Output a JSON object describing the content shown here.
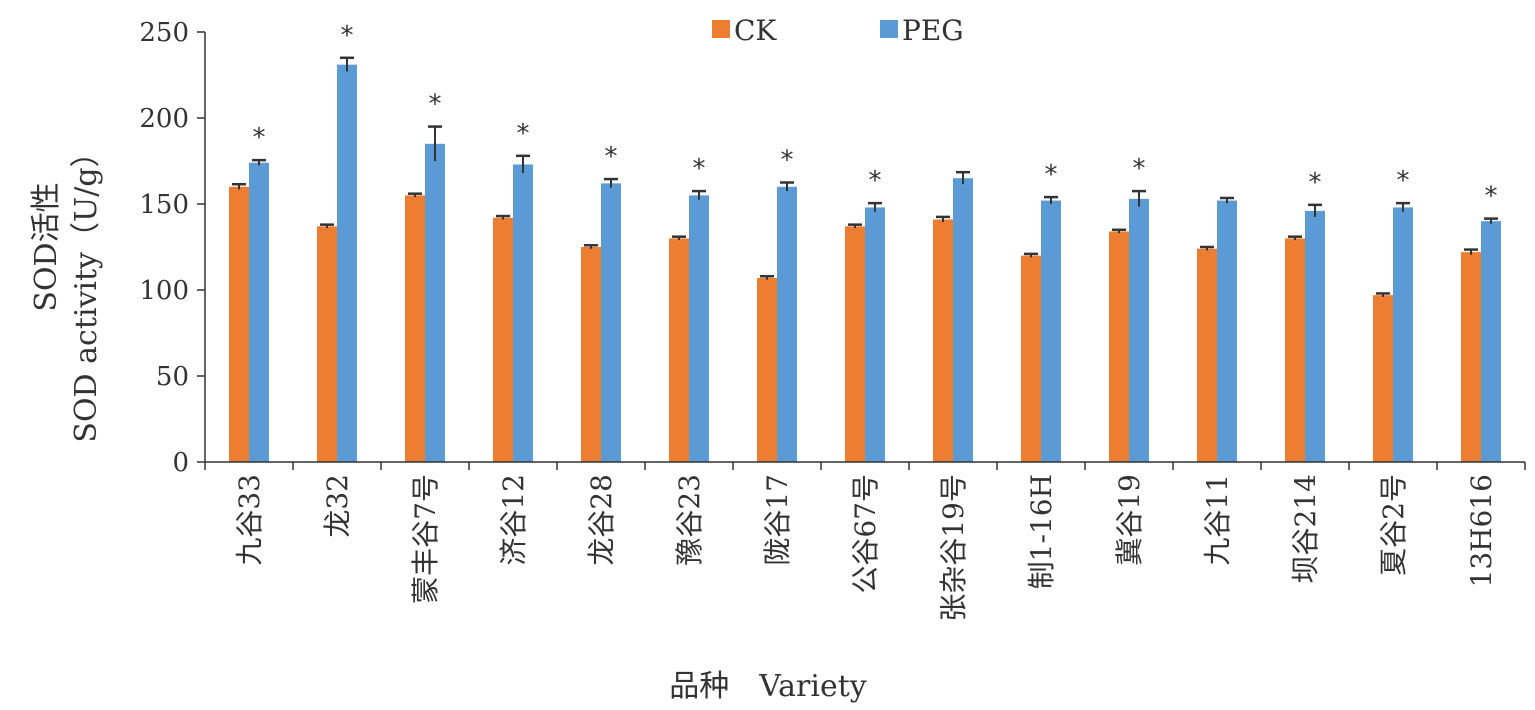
{
  "chart_data": {
    "type": "bar",
    "ylabel_cn": "SOD活性",
    "ylabel_en": "SOD activity（U/g）",
    "xlabel": "品种　Variety",
    "ylim": [
      0,
      250
    ],
    "yticks": [
      0,
      50,
      100,
      150,
      200,
      250
    ],
    "grid": false,
    "legend_position": "top-center",
    "categories": [
      "九谷33",
      "龙32",
      "蒙丰谷7号",
      "济谷12",
      "龙谷28",
      "豫谷23",
      "陇谷17",
      "公谷67号",
      "张杂谷19号",
      "制1-16H",
      "冀谷19",
      "九谷11",
      "坝谷214",
      "夏谷2号",
      "13H616"
    ],
    "series": [
      {
        "name": "CK",
        "color": "#ED7D31",
        "values": [
          160,
          137,
          155,
          142,
          125,
          130,
          107,
          137,
          141,
          120,
          134,
          124,
          130,
          97,
          122
        ],
        "errors": [
          1.5,
          1,
          1,
          1,
          1,
          1,
          1,
          1,
          1.5,
          1,
          1,
          1,
          1,
          1,
          1.5
        ]
      },
      {
        "name": "PEG",
        "color": "#5B9BD5",
        "values": [
          174,
          231,
          185,
          173,
          162,
          155,
          160,
          148,
          165,
          152,
          153,
          152,
          146,
          148,
          140
        ],
        "errors": [
          1.5,
          4,
          10,
          5,
          2.5,
          2.5,
          2.5,
          2.5,
          3.5,
          2,
          4.5,
          1.5,
          3.5,
          2.5,
          1.5
        ]
      }
    ],
    "significance_mark": "*",
    "significant": [
      true,
      true,
      true,
      true,
      true,
      true,
      true,
      true,
      false,
      true,
      true,
      false,
      true,
      true,
      true
    ]
  }
}
